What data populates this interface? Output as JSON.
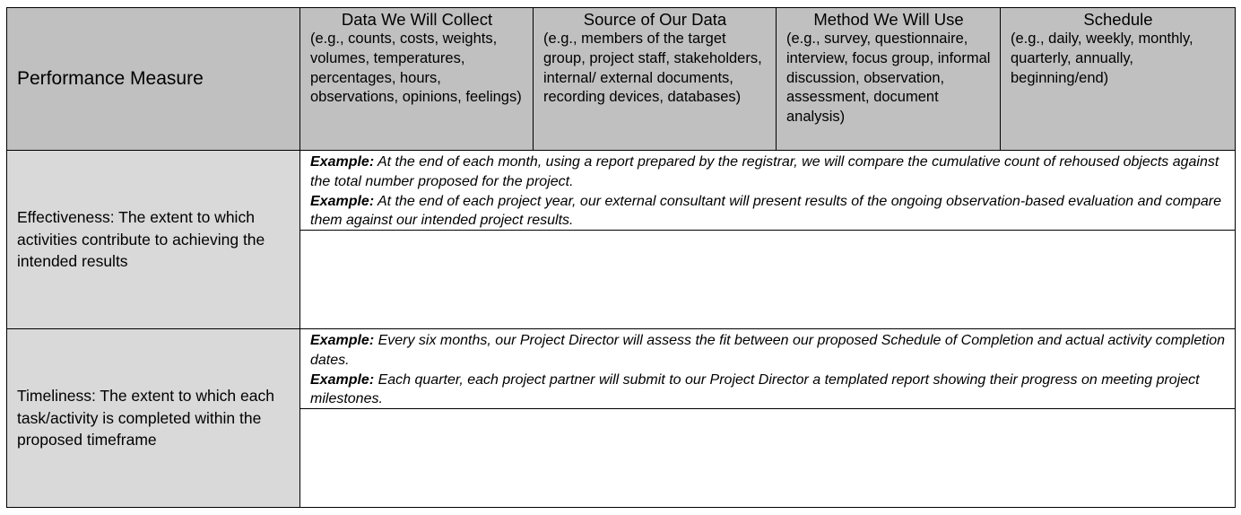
{
  "header": {
    "performance_measure": "Performance Measure",
    "columns": [
      {
        "title": "Data We Will Collect",
        "hint": "(e.g., counts, costs, weights, volumes, temperatures, percentages, hours, observations, opinions, feelings)"
      },
      {
        "title": "Source of Our Data",
        "hint": "(e.g., members of the target group, project staff, stakeholders, internal/ external documents, recording devices, databases)"
      },
      {
        "title": "Method We Will Use",
        "hint": "(e.g., survey, questionnaire, interview, focus group, informal discussion, observation, assessment, document analysis)"
      },
      {
        "title": "Schedule",
        "hint": "(e.g., daily, weekly, monthly, quarterly, annually, beginning/end)"
      }
    ]
  },
  "rows": [
    {
      "term": "Effectiveness",
      "definition": ": The extent to which activities contribute to achieving the intended results",
      "examples": [
        {
          "label": "Example:",
          "text": " At the end of each month, using a report prepared by the registrar, we will compare the cumulative count of rehoused objects against the total number proposed for the project."
        },
        {
          "label": "Example:",
          "text": " At the end of each project year, our external consultant will present results of the ongoing observation-based evaluation and compare them against our intended project results."
        }
      ]
    },
    {
      "term": "Timeliness",
      "definition": ": The extent to which each task/activity is completed within the proposed timeframe",
      "examples": [
        {
          "label": "Example:",
          "text": " Every six months, our Project Director will assess the fit between our proposed Schedule of Completion and actual activity completion dates."
        },
        {
          "label": "Example:",
          "text": " Each quarter, each project partner will submit to our Project Director a templated report showing their progress on meeting project milestones."
        }
      ]
    }
  ]
}
